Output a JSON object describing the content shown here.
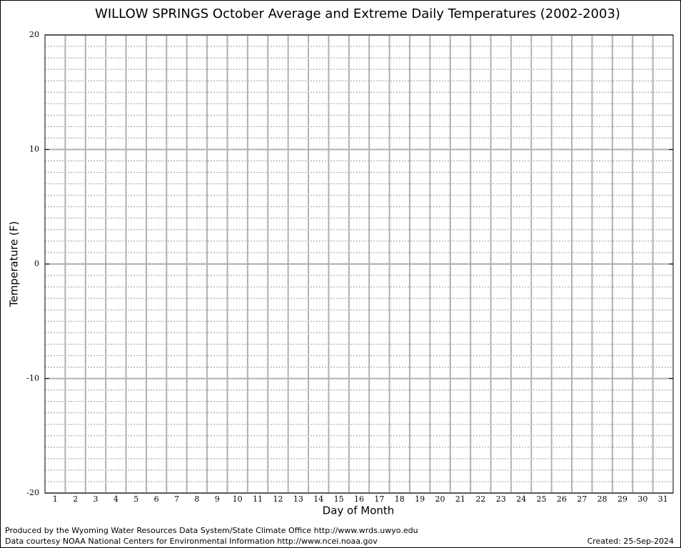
{
  "chart_data": {
    "type": "line",
    "title": "WILLOW SPRINGS October Average and Extreme Daily Temperatures (2002-2003)",
    "x_label": "Day of Month",
    "y_label": "Temperature (F)",
    "categories": [
      "1",
      "2",
      "3",
      "4",
      "5",
      "6",
      "7",
      "8",
      "9",
      "10",
      "11",
      "12",
      "13",
      "14",
      "15",
      "16",
      "17",
      "18",
      "19",
      "20",
      "21",
      "22",
      "23",
      "24",
      "25",
      "26",
      "27",
      "28",
      "29",
      "30",
      "31"
    ],
    "series": [],
    "ylim": [
      -20,
      20
    ],
    "yticks": [
      -20,
      -10,
      0,
      10,
      20
    ],
    "grid": true,
    "footer_left": [
      "Produced by the Wyoming Water Resources Data System/State Climate Office http://www.wrds.uwyo.edu",
      "Data courtesy NOAA National Centers for Environmental Information http://www.ncei.noaa.gov"
    ],
    "footer_right": "Created:  25-Sep-2024"
  }
}
